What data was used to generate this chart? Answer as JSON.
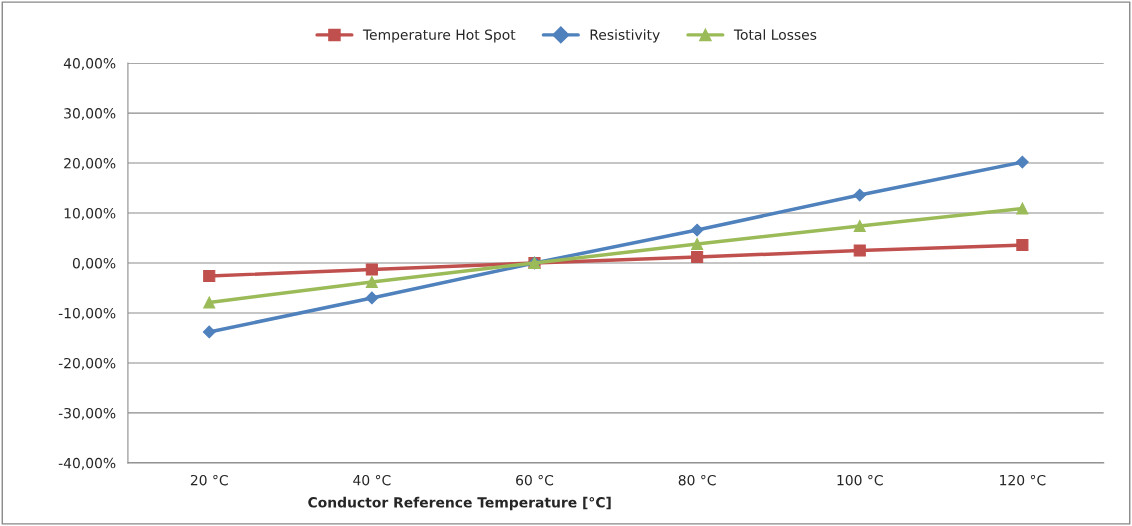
{
  "chart_data": {
    "type": "line",
    "xlabel": "Conductor Reference Temperature [°C]",
    "categories": [
      "20 °C",
      "40 °C",
      "60 °C",
      "80 °C",
      "100 °C",
      "120 °C"
    ],
    "series": [
      {
        "name": "Temperature Hot Spot",
        "color": "#c0504d",
        "marker": "square",
        "values": [
          -2.6,
          -1.3,
          0,
          1.2,
          2.5,
          3.6
        ]
      },
      {
        "name": "Resistivity",
        "color": "#4f81bd",
        "marker": "diamond",
        "values": [
          -13.8,
          -7.0,
          0,
          6.6,
          13.6,
          20.2
        ]
      },
      {
        "name": "Total Losses",
        "color": "#9bbb59",
        "marker": "triangle",
        "values": [
          -7.9,
          -3.8,
          0,
          3.8,
          7.4,
          10.9
        ]
      }
    ],
    "ylim": [
      -40,
      40
    ],
    "yticks": [
      {
        "value": -40,
        "label": "-40,00%"
      },
      {
        "value": -30,
        "label": "-30,00%"
      },
      {
        "value": -20,
        "label": "-20,00%"
      },
      {
        "value": -10,
        "label": "-10,00%"
      },
      {
        "value": 0,
        "label": "0,00%"
      },
      {
        "value": 10,
        "label": "10,00%"
      },
      {
        "value": 20,
        "label": "20,00%"
      },
      {
        "value": 30,
        "label": "30,00%"
      },
      {
        "value": 40,
        "label": "40,00%"
      }
    ],
    "grid": "y",
    "legend": "top",
    "line_style": "solid"
  }
}
